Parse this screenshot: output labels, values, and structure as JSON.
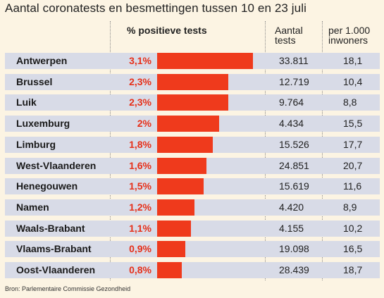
{
  "title": "Aantal coronatests en besmettingen tussen 10 en 23 juli",
  "headers": {
    "positive": "% positieve tests",
    "tests_line1": "Aantal",
    "tests_line2": "tests",
    "per_line1": "per 1.000",
    "per_line2": "inwoners"
  },
  "source": "Bron: Parlementaire Commissie Gezondheid",
  "colors": {
    "bar": "#ef3a1c",
    "pct_text": "#e6301a",
    "row_bg": "#d8dbe7",
    "page_bg": "#fcf4e3"
  },
  "chart_data": {
    "type": "bar",
    "title": "Aantal coronatests en besmettingen tussen 10 en 23 juli",
    "categories": [
      "Antwerpen",
      "Brussel",
      "Luik",
      "Luxemburg",
      "Limburg",
      "West-Vlaanderen",
      "Henegouwen",
      "Namen",
      "Waals-Brabant",
      "Vlaams-Brabant",
      "Oost-Vlaanderen"
    ],
    "values": [
      3.1,
      2.3,
      2.3,
      2.0,
      1.8,
      1.6,
      1.5,
      1.2,
      1.1,
      0.9,
      0.8
    ],
    "value_labels": [
      "3,1%",
      "2,3%",
      "2,3%",
      "2%",
      "1,8%",
      "1,6%",
      "1,5%",
      "1,2%",
      "1,1%",
      "0,9%",
      "0,8%"
    ],
    "tests": [
      "33.811",
      "12.719",
      "9.764",
      "4.434",
      "15.526",
      "24.851",
      "15.619",
      "4.420",
      "4.155",
      "19.098",
      "28.439"
    ],
    "per_1000": [
      "18,1",
      "10,4",
      "8,8",
      "15,5",
      "17,7",
      "20,7",
      "11,6",
      "8,9",
      "10,2",
      "16,5",
      "18,7"
    ],
    "xlim": [
      0,
      3.1
    ]
  }
}
